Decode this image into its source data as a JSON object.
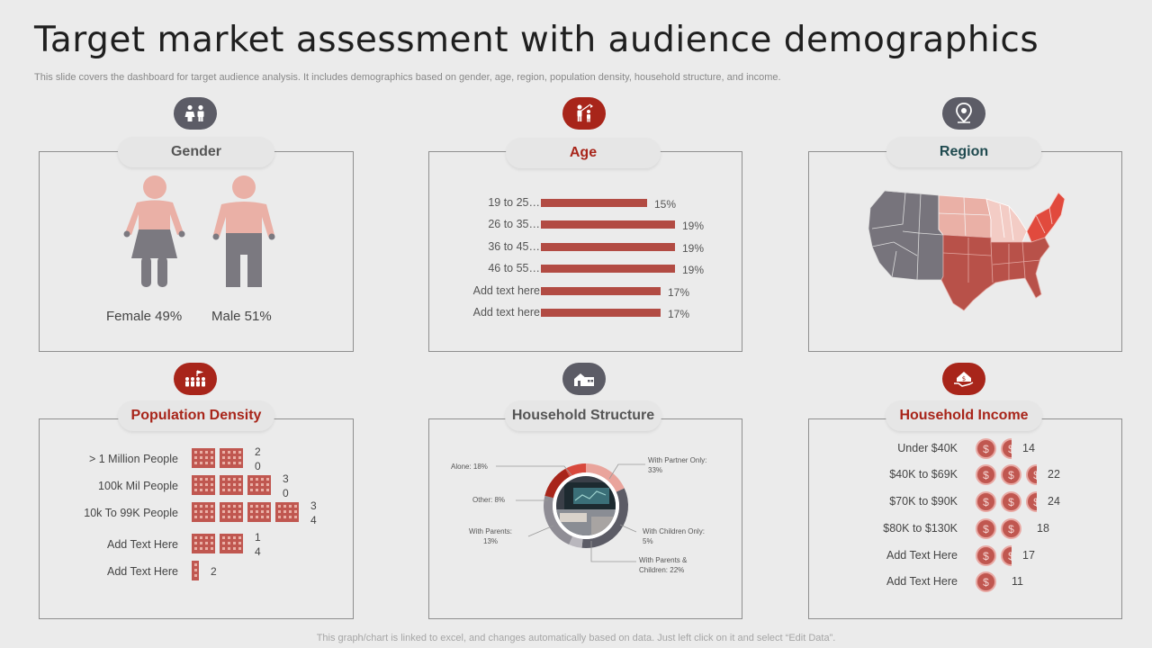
{
  "title": "Target market assessment with audience demographics",
  "subtitle": "This slide covers the dashboard for target audience analysis. It includes demographics based on gender, age, region, population density, household structure, and income.",
  "footer": "This graph/chart is linked to excel,  and changes automatically based on data. Just left click on it and select “Edit Data”.",
  "colors": {
    "accent_red": "#a8251a",
    "bar_red": "#b24b43",
    "gray_icon": "#5c5c66",
    "pink": "#eab0a6",
    "gray_figure": "#7b7980"
  },
  "gender": {
    "title": "Gender",
    "icon": "people-icon",
    "female_label": "Female 49%",
    "male_label": "Male 51%"
  },
  "age": {
    "title": "Age",
    "icon": "family-icon",
    "rows": [
      {
        "label": "19 to 25…",
        "value": 15,
        "display": "15%"
      },
      {
        "label": "26 to 35…",
        "value": 19,
        "display": "19%"
      },
      {
        "label": "36 to 45…",
        "value": 19,
        "display": "19%"
      },
      {
        "label": "46 to 55…",
        "value": 19,
        "display": "19%"
      },
      {
        "label": "Add text here",
        "value": 17,
        "display": "17%"
      },
      {
        "label": "Add text here",
        "value": 17,
        "display": "17%"
      }
    ]
  },
  "region": {
    "title": "Region",
    "icon": "location-pin-icon"
  },
  "density": {
    "title": "Population Density",
    "icon": "crowd-icon",
    "rows": [
      {
        "label": "> 1 Million People",
        "value": "20",
        "buildings": 2
      },
      {
        "label": "100k Mil People",
        "value": "30",
        "buildings": 3
      },
      {
        "label": "10k To 99K People",
        "value": "34",
        "buildings": 4
      },
      {
        "label": "Add Text Here",
        "value": "14",
        "buildings": 2
      },
      {
        "label": "Add Text Here",
        "value": "2",
        "buildings": 0.3
      }
    ]
  },
  "household": {
    "title": "Household Structure",
    "icon": "house-icon",
    "segments": [
      {
        "label": "Alone: 18%",
        "value": 18
      },
      {
        "label": "With Partner  Only: 33%",
        "value": 33
      },
      {
        "label": "With Children Only: 5%",
        "value": 5
      },
      {
        "label": "With Parents & Children: 22%",
        "value": 22
      },
      {
        "label": "With Parents: 13%",
        "value": 13
      },
      {
        "label": "Other: 8%",
        "value": 8
      }
    ],
    "labels": {
      "alone": "Alone: 18%",
      "partner1": "With Partner  Only:",
      "partner2": "33%",
      "other": "Other: 8%",
      "parents1": "With Parents:",
      "parents2": "13%",
      "children1": "With Children Only:",
      "children2": "5%",
      "pc1": "With Parents &",
      "pc2": "Children: 22%"
    }
  },
  "income": {
    "title": "Household Income",
    "icon": "house-dollar-icon",
    "rows": [
      {
        "label": "Under  $40K",
        "value": "14",
        "coins": 1.5
      },
      {
        "label": "$40K to $69K",
        "value": "22",
        "coins": 2.5
      },
      {
        "label": "$70K to $90K",
        "value": "24",
        "coins": 2.5
      },
      {
        "label": "$80K to $130K",
        "value": "18",
        "coins": 2
      },
      {
        "label": "Add Text Here",
        "value": "17",
        "coins": 1.5
      },
      {
        "label": "Add Text Here",
        "value": "11",
        "coins": 1
      }
    ]
  }
}
